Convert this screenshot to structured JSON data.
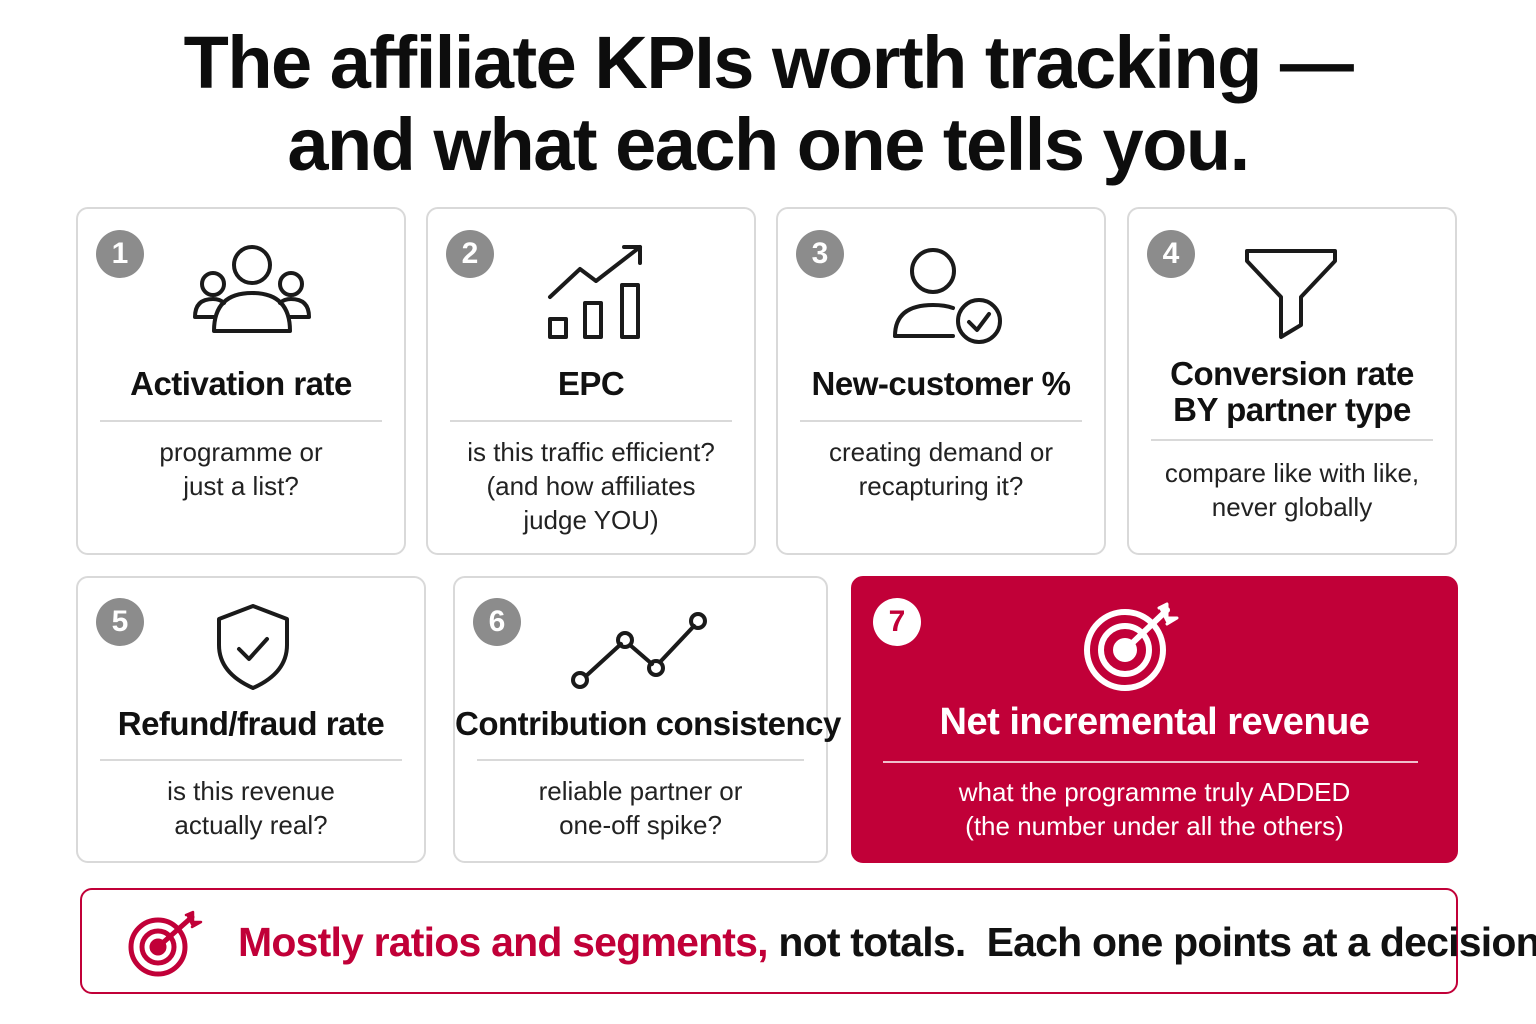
{
  "title": {
    "line1": "The affiliate KPIs worth tracking —",
    "line2": "and what each one tells you."
  },
  "cards": [
    {
      "number": "1",
      "title": "Activation rate",
      "desc": [
        "programme or",
        "just a list?"
      ],
      "icon": "people-group-icon"
    },
    {
      "number": "2",
      "title": "EPC",
      "desc": [
        "is this traffic efficient?",
        "(and how affiliates",
        "judge YOU)"
      ],
      "icon": "bar-chart-up-icon"
    },
    {
      "number": "3",
      "title": "New-customer %",
      "desc": [
        "creating demand or",
        "recapturing it?"
      ],
      "icon": "user-check-icon"
    },
    {
      "number": "4",
      "title": [
        "Conversion rate",
        "BY partner type"
      ],
      "desc": [
        "compare like with like,",
        "never globally"
      ],
      "icon": "funnel-icon"
    },
    {
      "number": "5",
      "title": "Refund/fraud rate",
      "desc": [
        "is this revenue",
        "actually real?"
      ],
      "icon": "shield-check-icon"
    },
    {
      "number": "6",
      "title": "Contribution consistency",
      "desc": [
        "reliable partner or",
        "one-off spike?"
      ],
      "icon": "line-chart-icon"
    },
    {
      "number": "7",
      "title": "Net incremental revenue",
      "desc": [
        "what the programme truly ADDED",
        "(the number under all the others)"
      ],
      "icon": "target-arrow-icon"
    }
  ],
  "footer": {
    "accent": "Mostly ratios and segments,",
    "rest": " not totals.  Each one points at a decision.",
    "icon": "target-arrow-icon"
  },
  "colors": {
    "accent": "#c10038",
    "badge": "#8c8c8c",
    "border": "#d9d9d9"
  }
}
